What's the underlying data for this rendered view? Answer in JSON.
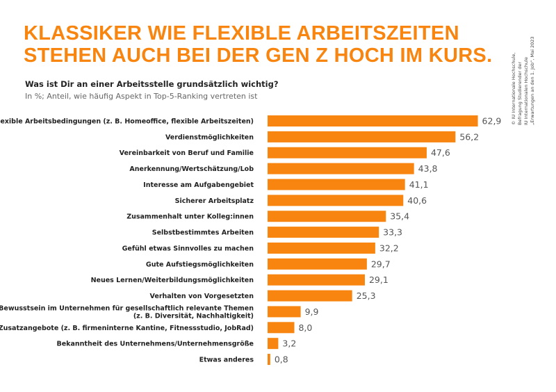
{
  "title_lines": [
    "KLASSIKER WIE FLEXIBLE ARBEITSZEITEN",
    "STEHEN AUCH BEI DER GEN Z HOCH IM KURS."
  ],
  "source_lines": [
    "© IU Internationale Hochschule,",
    "Befragung Studierender der",
    "IU Internationalen Hochschule",
    "„Erwartungen an den 1. Job“, Mai 2023"
  ],
  "chart_data": {
    "title": "Was ist Dir an einer Arbeitsstelle grundsätzlich wichtig?",
    "subtitle": "In %; Anteil, wie häufig Aspekt in Top-5-Ranking vertreten ist",
    "orientation": "horizontal",
    "bar_color": "#f7850f",
    "xlim": [
      0,
      70
    ],
    "grid": false,
    "categories": [
      [
        "Flexible Arbeitsbedingungen (z. B. Homeoffice, flexible Arbeitszeiten)"
      ],
      [
        "Verdienstmöglichkeiten"
      ],
      [
        "Vereinbarkeit von Beruf und Familie"
      ],
      [
        "Anerkennung/Wertschätzung/Lob"
      ],
      [
        "Interesse am Aufgabengebiet"
      ],
      [
        "Sicherer Arbeitsplatz"
      ],
      [
        "Zusammenhalt unter Kolleg:innen"
      ],
      [
        "Selbstbestimmtes Arbeiten"
      ],
      [
        "Gefühl etwas Sinnvolles zu machen"
      ],
      [
        "Gute Aufstiegsmöglichkeiten"
      ],
      [
        "Neues Lernen/Weiterbildungsmöglichkeiten"
      ],
      [
        "Verhalten von Vorgesetzten"
      ],
      [
        "Bewusstsein im Unternehmen für gesellschaftlich relevante Themen",
        "(z. B. Diversität, Nachhaltigkeit)"
      ],
      [
        "Zusatzangebote (z. B. firmeninterne Kantine, Fitnessstudio, JobRad)"
      ],
      [
        "Bekanntheit des Unternehmens/Unternehmensgröße"
      ],
      [
        "Etwas anderes"
      ]
    ],
    "values": [
      62.9,
      56.2,
      47.6,
      43.8,
      41.1,
      40.6,
      35.4,
      33.3,
      32.2,
      29.7,
      29.1,
      25.3,
      9.9,
      8.0,
      3.2,
      0.8
    ],
    "value_labels": [
      "62,9",
      "56,2",
      "47,6",
      "43,8",
      "41,1",
      "40,6",
      "35,4",
      "33,3",
      "32,2",
      "29,7",
      "29,1",
      "25,3",
      "9,9",
      "8,0",
      "3,2",
      "0,8"
    ]
  }
}
